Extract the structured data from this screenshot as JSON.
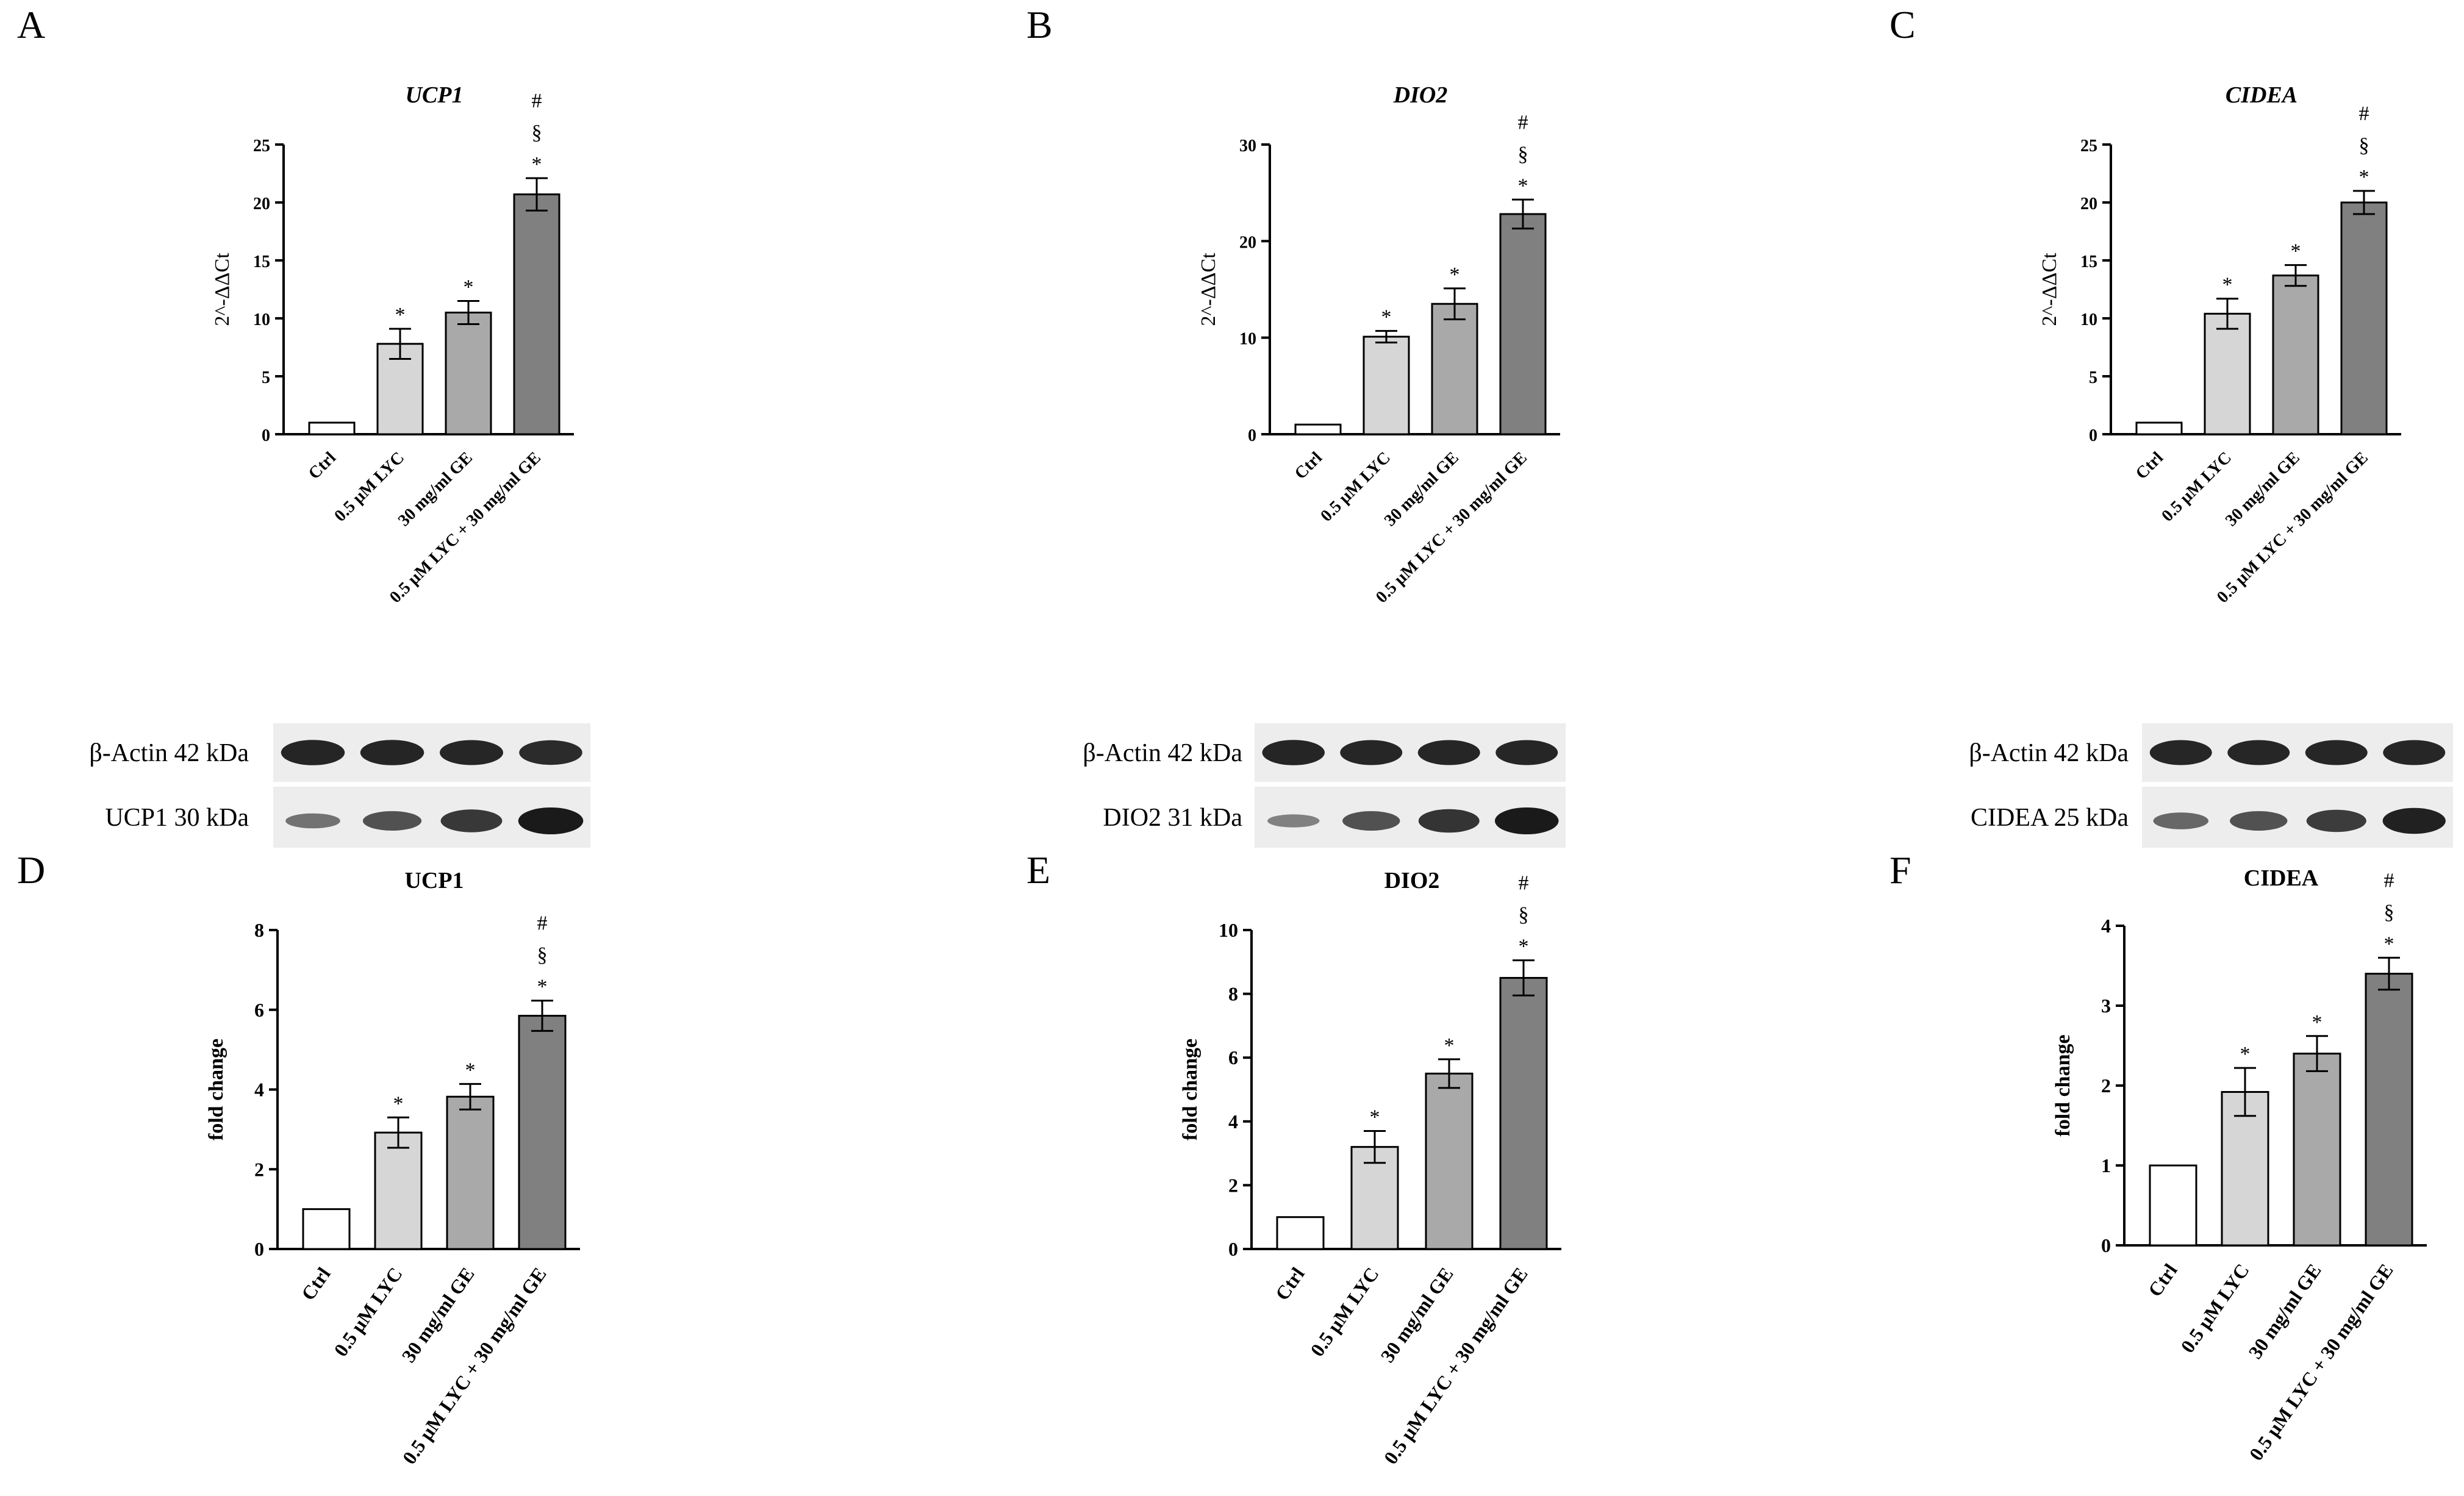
{
  "colors": {
    "ctrl": "#ffffff",
    "lyc": "#d6d6d6",
    "ge": "#a9a9a9",
    "combo": "#808080",
    "blot_bg": "#ededed",
    "band": "#1a1a1a"
  },
  "categories": [
    "Ctrl",
    "0.5 µM LYC",
    "30 mg/ml GE",
    "0.5 µM LYC + 30 mg/ml GE"
  ],
  "chart_data": [
    {
      "id": "A",
      "panel_label": "A",
      "type": "bar",
      "title": "UCP1",
      "title_italic": true,
      "xlabel": "",
      "ylabel": "2^-ΔΔCt",
      "ylim": [
        0,
        25
      ],
      "yticks": [
        0,
        5,
        10,
        15,
        20,
        25
      ],
      "categories": [
        "Ctrl",
        "0.5 µM LYC",
        "30 mg/ml GE",
        "0.5 µM LYC + 30 mg/ml GE"
      ],
      "values": [
        1.0,
        7.8,
        10.5,
        20.7
      ],
      "errors": [
        0,
        1.3,
        1.0,
        1.4
      ],
      "annotations": [
        [],
        [
          "*"
        ],
        [
          "*"
        ],
        [
          "*",
          "§",
          "#"
        ]
      ],
      "grid": false,
      "legend": "none"
    },
    {
      "id": "B",
      "panel_label": "B",
      "type": "bar",
      "title": "DIO2",
      "title_italic": true,
      "xlabel": "",
      "ylabel": "2^-ΔΔCt",
      "ylim": [
        0,
        30
      ],
      "yticks": [
        0,
        10,
        20,
        30
      ],
      "categories": [
        "Ctrl",
        "0.5 µM LYC",
        "30 mg/ml GE",
        "0.5 µM LYC + 30 mg/ml GE"
      ],
      "values": [
        1.0,
        10.1,
        13.5,
        22.8
      ],
      "errors": [
        0,
        0.6,
        1.6,
        1.5
      ],
      "annotations": [
        [],
        [
          "*"
        ],
        [
          "*"
        ],
        [
          "*",
          "§",
          "#"
        ]
      ],
      "grid": false,
      "legend": "none"
    },
    {
      "id": "C",
      "panel_label": "C",
      "type": "bar",
      "title": "CIDEA",
      "title_italic": true,
      "xlabel": "",
      "ylabel": "2^-ΔΔCt",
      "ylim": [
        0,
        25
      ],
      "yticks": [
        0,
        5,
        10,
        15,
        20,
        25
      ],
      "categories": [
        "Ctrl",
        "0.5 µM LYC",
        "30 mg/ml GE",
        "0.5 µM LYC + 30 mg/ml GE"
      ],
      "values": [
        1.0,
        10.4,
        13.7,
        20.0
      ],
      "errors": [
        0,
        1.3,
        0.9,
        1.0
      ],
      "annotations": [
        [],
        [
          "*"
        ],
        [
          "*"
        ],
        [
          "*",
          "§",
          "#"
        ]
      ],
      "grid": false,
      "legend": "none"
    },
    {
      "id": "D",
      "panel_label": "D",
      "type": "bar",
      "title": "UCP1",
      "title_italic": false,
      "xlabel": "",
      "ylabel": "fold change",
      "ylim": [
        0,
        8
      ],
      "yticks": [
        0,
        2,
        4,
        6,
        8
      ],
      "categories": [
        "Ctrl",
        "0.5 µM LYC",
        "30 mg/ml GE",
        "0.5 µM LYC + 30 mg/ml GE"
      ],
      "values": [
        1.0,
        2.92,
        3.82,
        5.85
      ],
      "errors": [
        0,
        0.38,
        0.32,
        0.38
      ],
      "annotations": [
        [],
        [
          "*"
        ],
        [
          "*"
        ],
        [
          "*",
          "§",
          "#"
        ]
      ],
      "grid": false,
      "legend": "none"
    },
    {
      "id": "E",
      "panel_label": "E",
      "type": "bar",
      "title": "DIO2",
      "title_italic": false,
      "xlabel": "",
      "ylabel": "fold change",
      "ylim": [
        0,
        10
      ],
      "yticks": [
        0,
        2,
        4,
        6,
        8,
        10
      ],
      "categories": [
        "Ctrl",
        "0.5 µM LYC",
        "30 mg/ml GE",
        "0.5 µM LYC + 30 mg/ml GE"
      ],
      "values": [
        1.0,
        3.2,
        5.5,
        8.5
      ],
      "errors": [
        0,
        0.5,
        0.45,
        0.55
      ],
      "annotations": [
        [],
        [
          "*"
        ],
        [
          "*"
        ],
        [
          "*",
          "§",
          "#"
        ]
      ],
      "grid": false,
      "legend": "none"
    },
    {
      "id": "F",
      "panel_label": "F",
      "type": "bar",
      "title": "CIDEA",
      "title_italic": false,
      "xlabel": "",
      "ylabel": "fold change",
      "ylim": [
        0,
        4
      ],
      "yticks": [
        0,
        1,
        2,
        3,
        4
      ],
      "categories": [
        "Ctrl",
        "0.5 µM LYC",
        "30 mg/ml GE",
        "0.5 µM LYC + 30 mg/ml GE"
      ],
      "values": [
        1.0,
        1.92,
        2.4,
        3.4
      ],
      "errors": [
        0,
        0.3,
        0.22,
        0.2
      ],
      "annotations": [
        [],
        [
          "*"
        ],
        [
          "*"
        ],
        [
          "*",
          "§",
          "#"
        ]
      ],
      "grid": false,
      "legend": "none"
    }
  ],
  "blots": [
    {
      "id": "blot-ucp1",
      "rows": [
        {
          "label": "β-Actin 42 kDa",
          "intensity": [
            0.92,
            0.92,
            0.9,
            0.88
          ]
        },
        {
          "label": "UCP1 30 kDa",
          "intensity": [
            0.35,
            0.6,
            0.78,
            1.0
          ]
        }
      ]
    },
    {
      "id": "blot-dio2",
      "rows": [
        {
          "label": "β-Actin 42 kDa",
          "intensity": [
            0.92,
            0.9,
            0.9,
            0.9
          ]
        },
        {
          "label": "DIO2 31 kDa",
          "intensity": [
            0.25,
            0.6,
            0.82,
            1.0
          ]
        }
      ]
    },
    {
      "id": "blot-cidea",
      "rows": [
        {
          "label": "β-Actin 42 kDa",
          "intensity": [
            0.9,
            0.9,
            0.9,
            0.9
          ]
        },
        {
          "label": "CIDEA 25 kDa",
          "intensity": [
            0.45,
            0.6,
            0.75,
            0.95
          ]
        }
      ]
    }
  ]
}
